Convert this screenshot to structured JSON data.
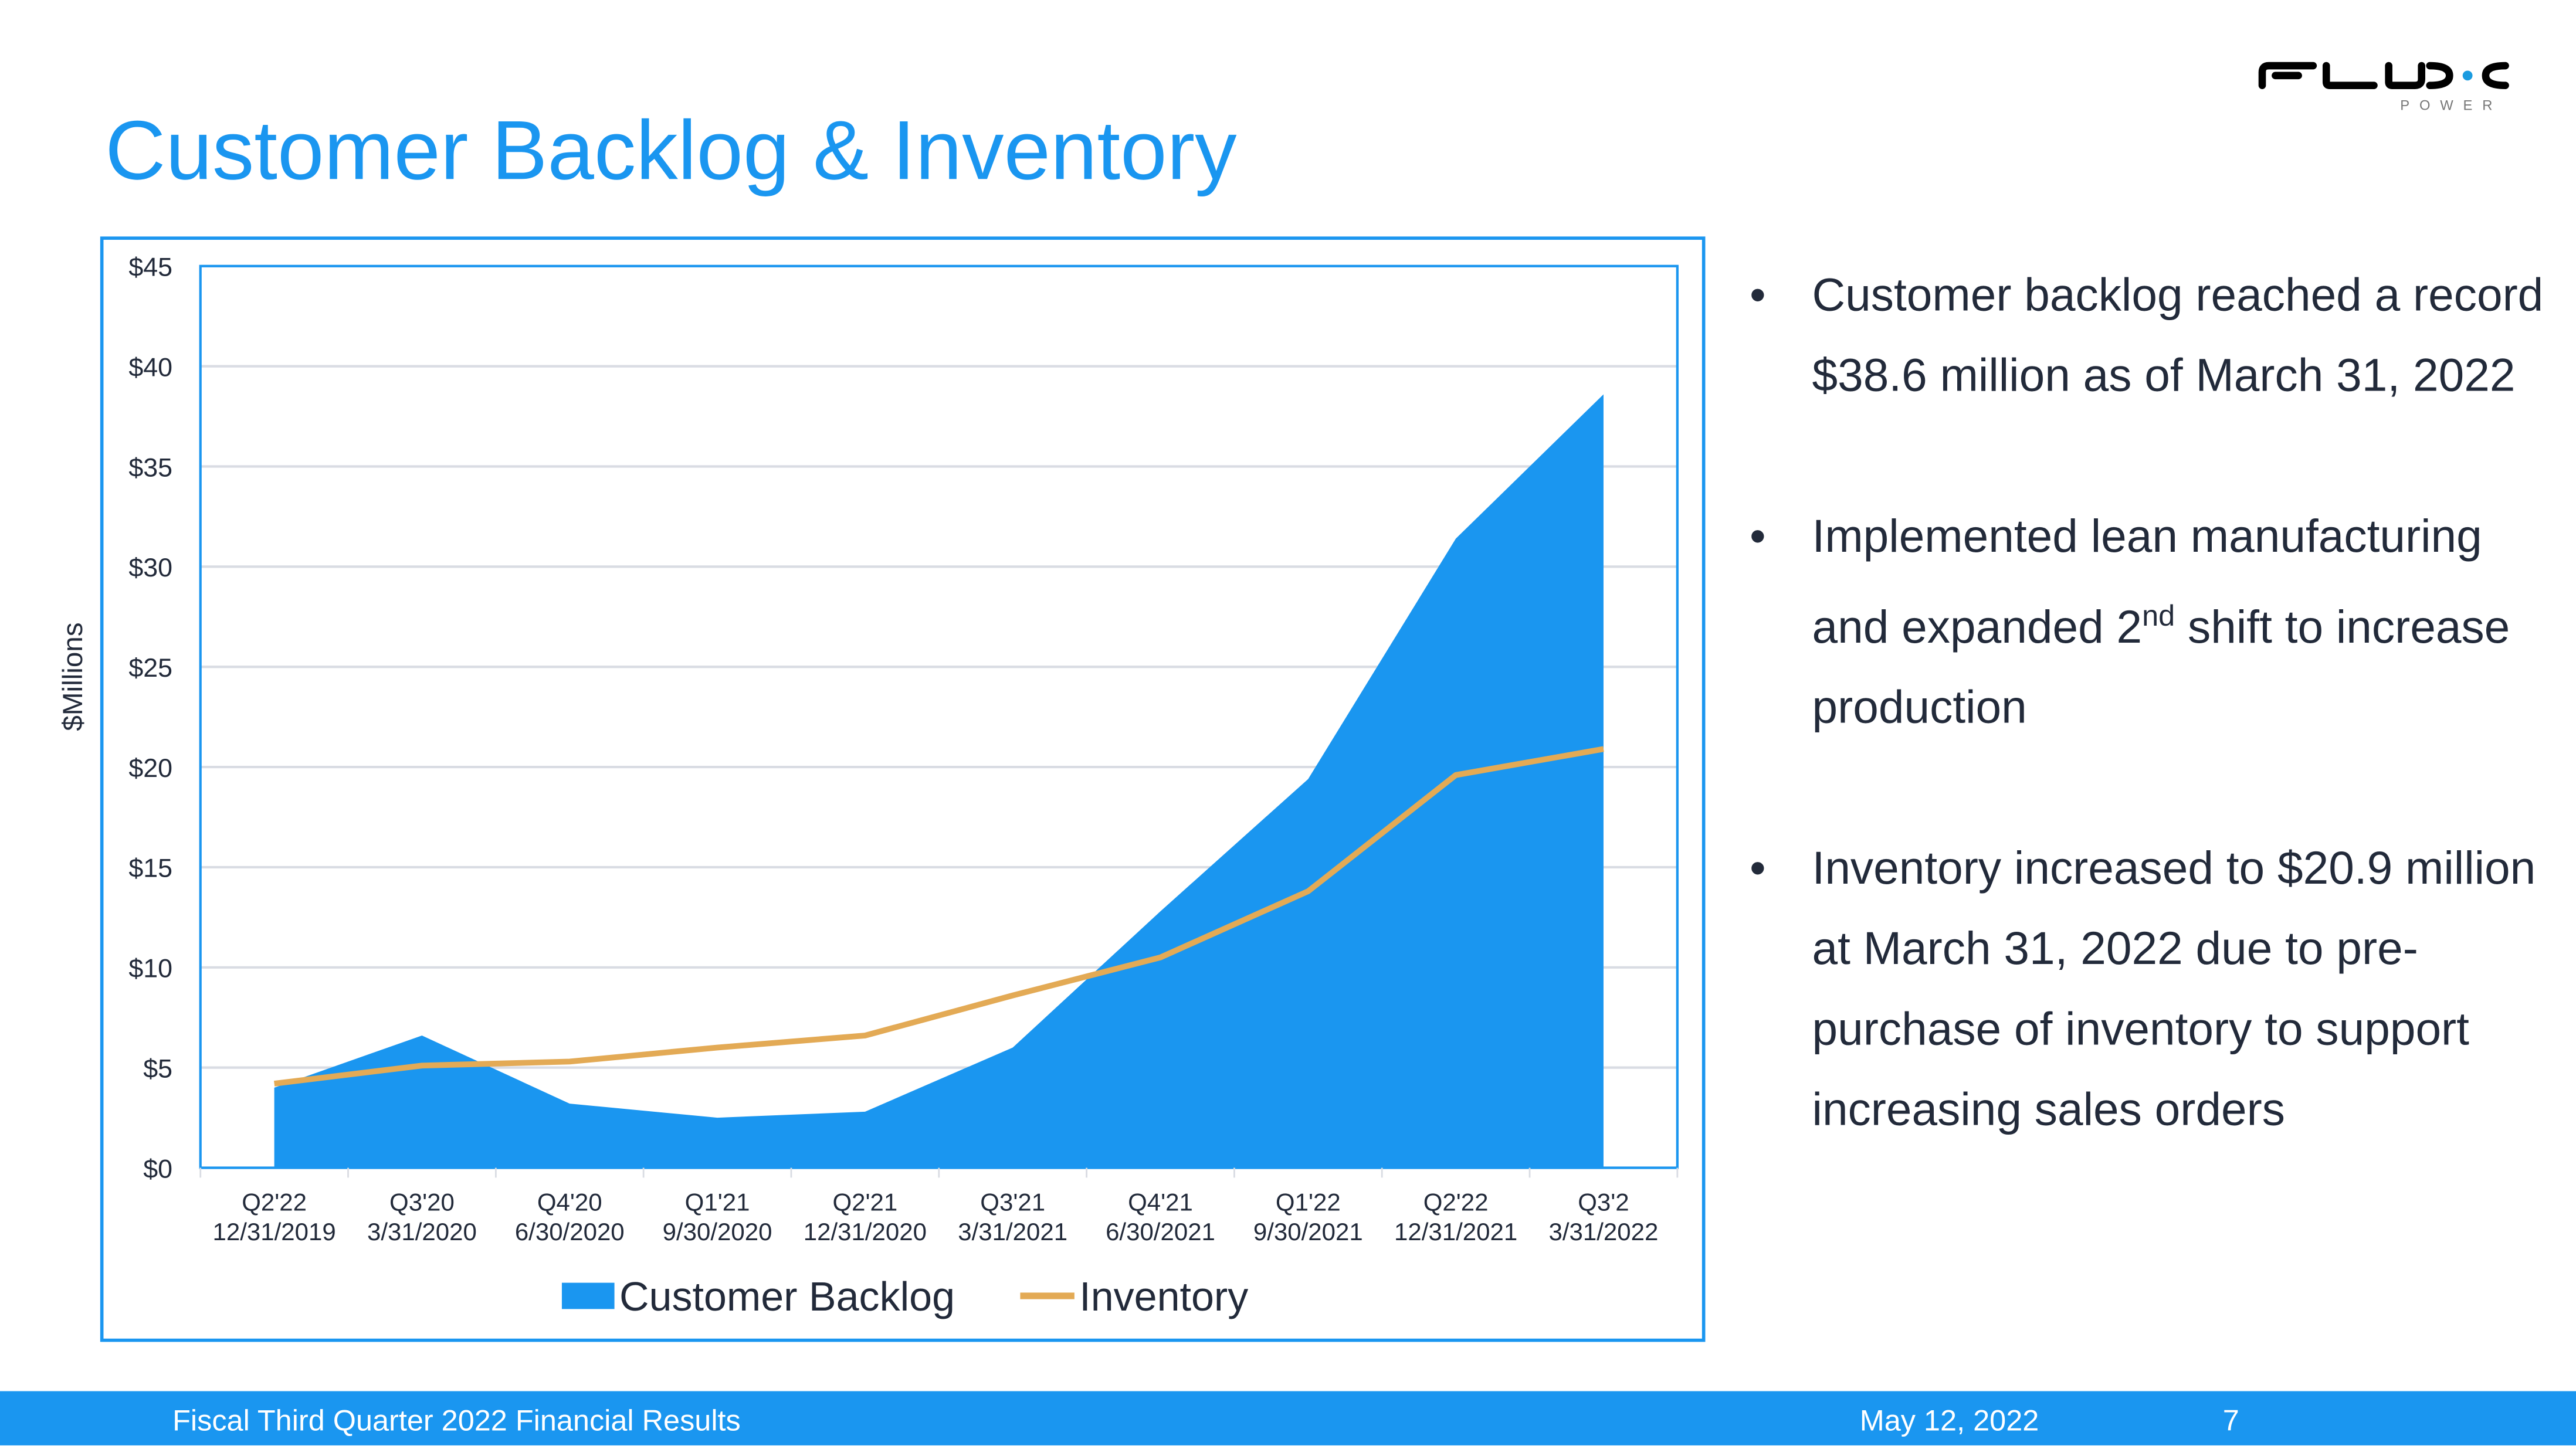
{
  "title": "Customer Backlog & Inventory",
  "logo": {
    "text": "FLUX",
    "subtext": "POWER",
    "dot_color": "#1a9be0"
  },
  "colors": {
    "accent": "#1a96f0",
    "inventory": "#e3aa55",
    "text": "#222a3a"
  },
  "chart_data": {
    "type": "area",
    "ylabel": "$Millions",
    "ylim": [
      0,
      45
    ],
    "yticks": [
      0,
      5,
      10,
      15,
      20,
      25,
      30,
      35,
      40,
      45
    ],
    "ytick_labels": [
      "$0",
      "$5",
      "$10",
      "$15",
      "$20",
      "$25",
      "$30",
      "$35",
      "$40",
      "$45"
    ],
    "grid": true,
    "legend_position": "bottom",
    "categories": [
      {
        "q": "Q2'22",
        "date": "12/31/2019"
      },
      {
        "q": "Q3'20",
        "date": "3/31/2020"
      },
      {
        "q": "Q4'20",
        "date": "6/30/2020"
      },
      {
        "q": "Q1'21",
        "date": "9/30/2020"
      },
      {
        "q": "Q2'21",
        "date": "12/31/2020"
      },
      {
        "q": "Q3'21",
        "date": "3/31/2021"
      },
      {
        "q": "Q4'21",
        "date": "6/30/2021"
      },
      {
        "q": "Q1'22",
        "date": "9/30/2021"
      },
      {
        "q": "Q2'22",
        "date": "12/31/2021"
      },
      {
        "q": "Q3'2",
        "date": "3/31/2022"
      }
    ],
    "series": [
      {
        "name": "Customer Backlog",
        "type": "area",
        "color": "#1a96f0",
        "values": [
          4.0,
          6.6,
          3.2,
          2.5,
          2.8,
          6.0,
          12.8,
          19.4,
          31.4,
          38.6
        ]
      },
      {
        "name": "Inventory",
        "type": "line",
        "color": "#e3aa55",
        "values": [
          4.2,
          5.1,
          5.3,
          6.0,
          6.6,
          8.6,
          10.5,
          13.8,
          19.6,
          20.9
        ]
      }
    ]
  },
  "bullets": [
    {
      "text": "Customer backlog reached a record $38.6 million as of March 31, 2022"
    },
    {
      "pre": "Implemented lean manufacturing and expanded 2",
      "sup": "nd",
      "post": " shift to increase production"
    },
    {
      "text": "Inventory increased to $20.9 million at March 31, 2022 due to pre-purchase of inventory to support increasing sales orders"
    }
  ],
  "bullet_symbol": "•",
  "footer": {
    "left": "Fiscal Third Quarter 2022 Financial Results",
    "date": "May 12, 2022",
    "page": "7"
  }
}
